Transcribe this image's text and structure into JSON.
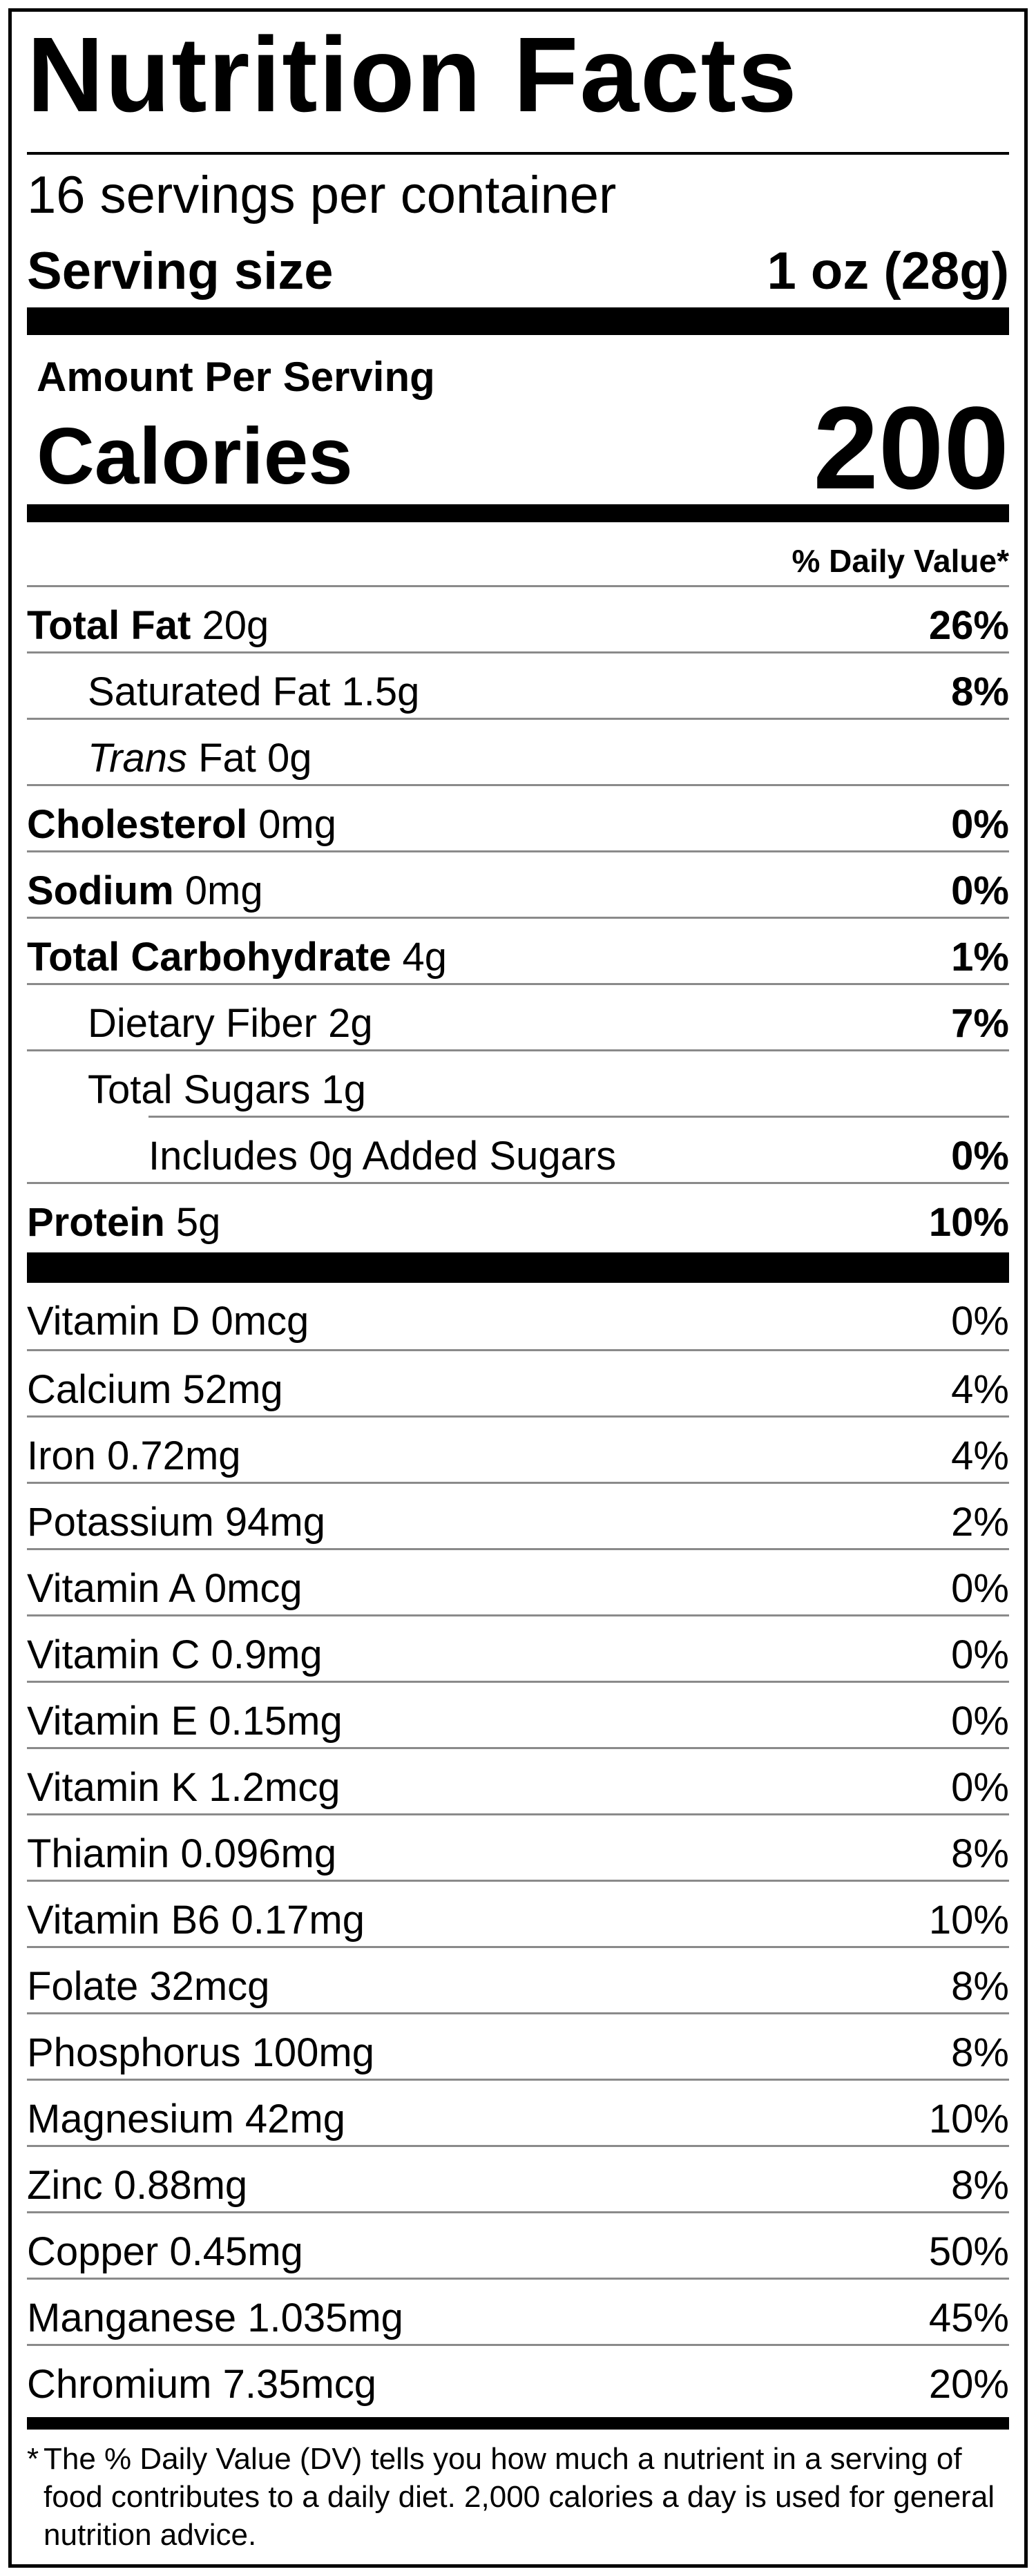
{
  "label": {
    "title": "Nutrition Facts",
    "servings_per_container": "16 servings per container",
    "serving_size_label": "Serving size",
    "serving_size_value": "1 oz (28g)",
    "amount_per_serving": "Amount Per Serving",
    "calories_label": "Calories",
    "calories_value": "200",
    "daily_value_header": "% Daily Value*"
  },
  "nutrients": [
    {
      "name": "Total Fat",
      "amount": " 20g",
      "dv": "26%"
    },
    {
      "name": "Saturated Fat",
      "amount": " 1.5g",
      "dv": "8%"
    },
    {
      "name": "Trans",
      "amount": " Fat 0g",
      "dv": ""
    },
    {
      "name": "Cholesterol",
      "amount": " 0mg",
      "dv": "0%"
    },
    {
      "name": "Sodium",
      "amount": " 0mg",
      "dv": "0%"
    },
    {
      "name": "Total Carbohydrate",
      "amount": " 4g",
      "dv": "1%"
    },
    {
      "name": "Dietary Fiber",
      "amount": " 2g",
      "dv": "7%"
    },
    {
      "name": "Total Sugars",
      "amount": " 1g",
      "dv": ""
    },
    {
      "name": "Includes 0g Added Sugars",
      "amount": "",
      "dv": "0%"
    },
    {
      "name": "Protein",
      "amount": " 5g",
      "dv": "10%"
    }
  ],
  "vitamins": [
    {
      "label": "Vitamin D 0mcg",
      "dv": "0%"
    },
    {
      "label": "Calcium 52mg",
      "dv": "4%"
    },
    {
      "label": "Iron 0.72mg",
      "dv": "4%"
    },
    {
      "label": "Potassium 94mg",
      "dv": "2%"
    },
    {
      "label": "Vitamin A 0mcg",
      "dv": "0%"
    },
    {
      "label": "Vitamin C 0.9mg",
      "dv": "0%"
    },
    {
      "label": "Vitamin E 0.15mg",
      "dv": "0%"
    },
    {
      "label": "Vitamin K 1.2mcg",
      "dv": "0%"
    },
    {
      "label": "Thiamin 0.096mg",
      "dv": "8%"
    },
    {
      "label": "Vitamin B6 0.17mg",
      "dv": "10%"
    },
    {
      "label": "Folate 32mcg",
      "dv": "8%"
    },
    {
      "label": "Phosphorus 100mg",
      "dv": "8%"
    },
    {
      "label": "Magnesium 42mg",
      "dv": "10%"
    },
    {
      "label": "Zinc 0.88mg",
      "dv": "8%"
    },
    {
      "label": "Copper 0.45mg",
      "dv": "50%"
    },
    {
      "label": "Manganese 1.035mg",
      "dv": "45%"
    },
    {
      "label": "Chromium 7.35mcg",
      "dv": "20%"
    }
  ],
  "footnote": {
    "star": "*",
    "text": "The % Daily Value (DV) tells you how much a nutrient in a serving of food contributes to a daily diet. 2,000 calories a day is used for general nutrition advice."
  }
}
